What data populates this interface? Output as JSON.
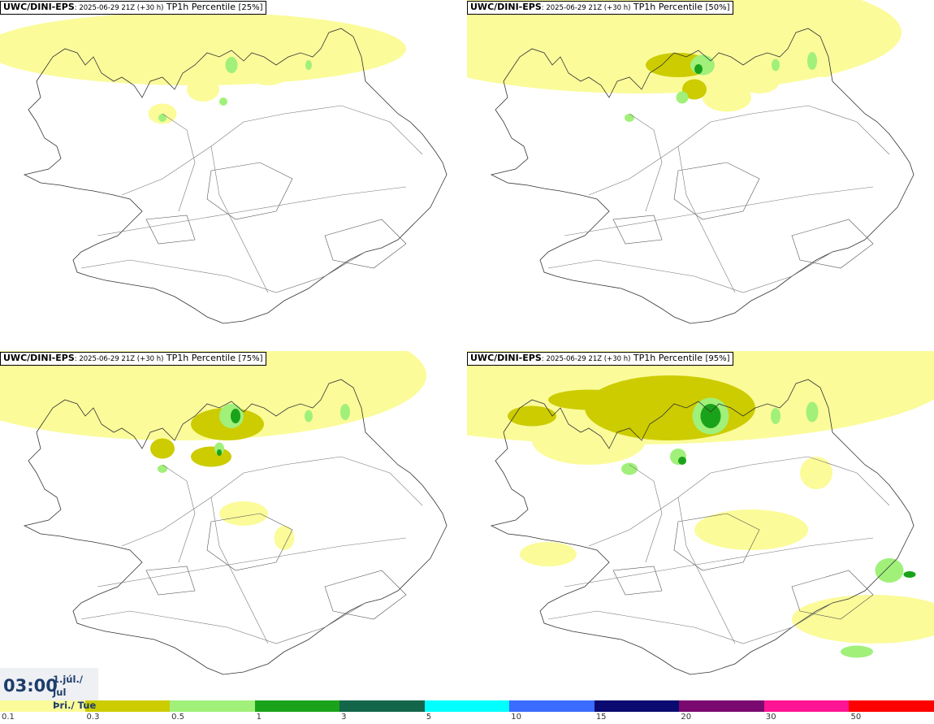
{
  "panels": [
    {
      "model": "UWC/DINI-EPS",
      "run": ": 2025-06-29 21Z (+30 h)",
      "param": "TP1h Percentile",
      "pct": "[25%]"
    },
    {
      "model": "UWC/DINI-EPS",
      "run": ": 2025-06-29 21Z (+30 h)",
      "param": "TP1h Percentile",
      "pct": "[50%]"
    },
    {
      "model": "UWC/DINI-EPS",
      "run": ": 2025-06-29 21Z (+30 h)",
      "param": "TP1h Percentile",
      "pct": "[75%]"
    },
    {
      "model": "UWC/DINI-EPS",
      "run": ": 2025-06-29 21Z (+30 h)",
      "param": "TP1h Percentile",
      "pct": "[95%]"
    }
  ],
  "valid_time": {
    "time": "03:00",
    "date_line1": "1.júl./ Jul",
    "date_line2": "Þri./ Tue"
  },
  "legend": {
    "colors": [
      "#fbfb9a",
      "#cccc00",
      "#a0f07a",
      "#1aa31a",
      "#14664a",
      "#00ffff",
      "#3a6cff",
      "#0a0a70",
      "#7a0a70",
      "#ff1493",
      "#ff0000"
    ],
    "labels": [
      "0.1",
      "0.3",
      "0.5",
      "1",
      "3",
      "5",
      "10",
      "15",
      "20",
      "30",
      "50"
    ]
  }
}
